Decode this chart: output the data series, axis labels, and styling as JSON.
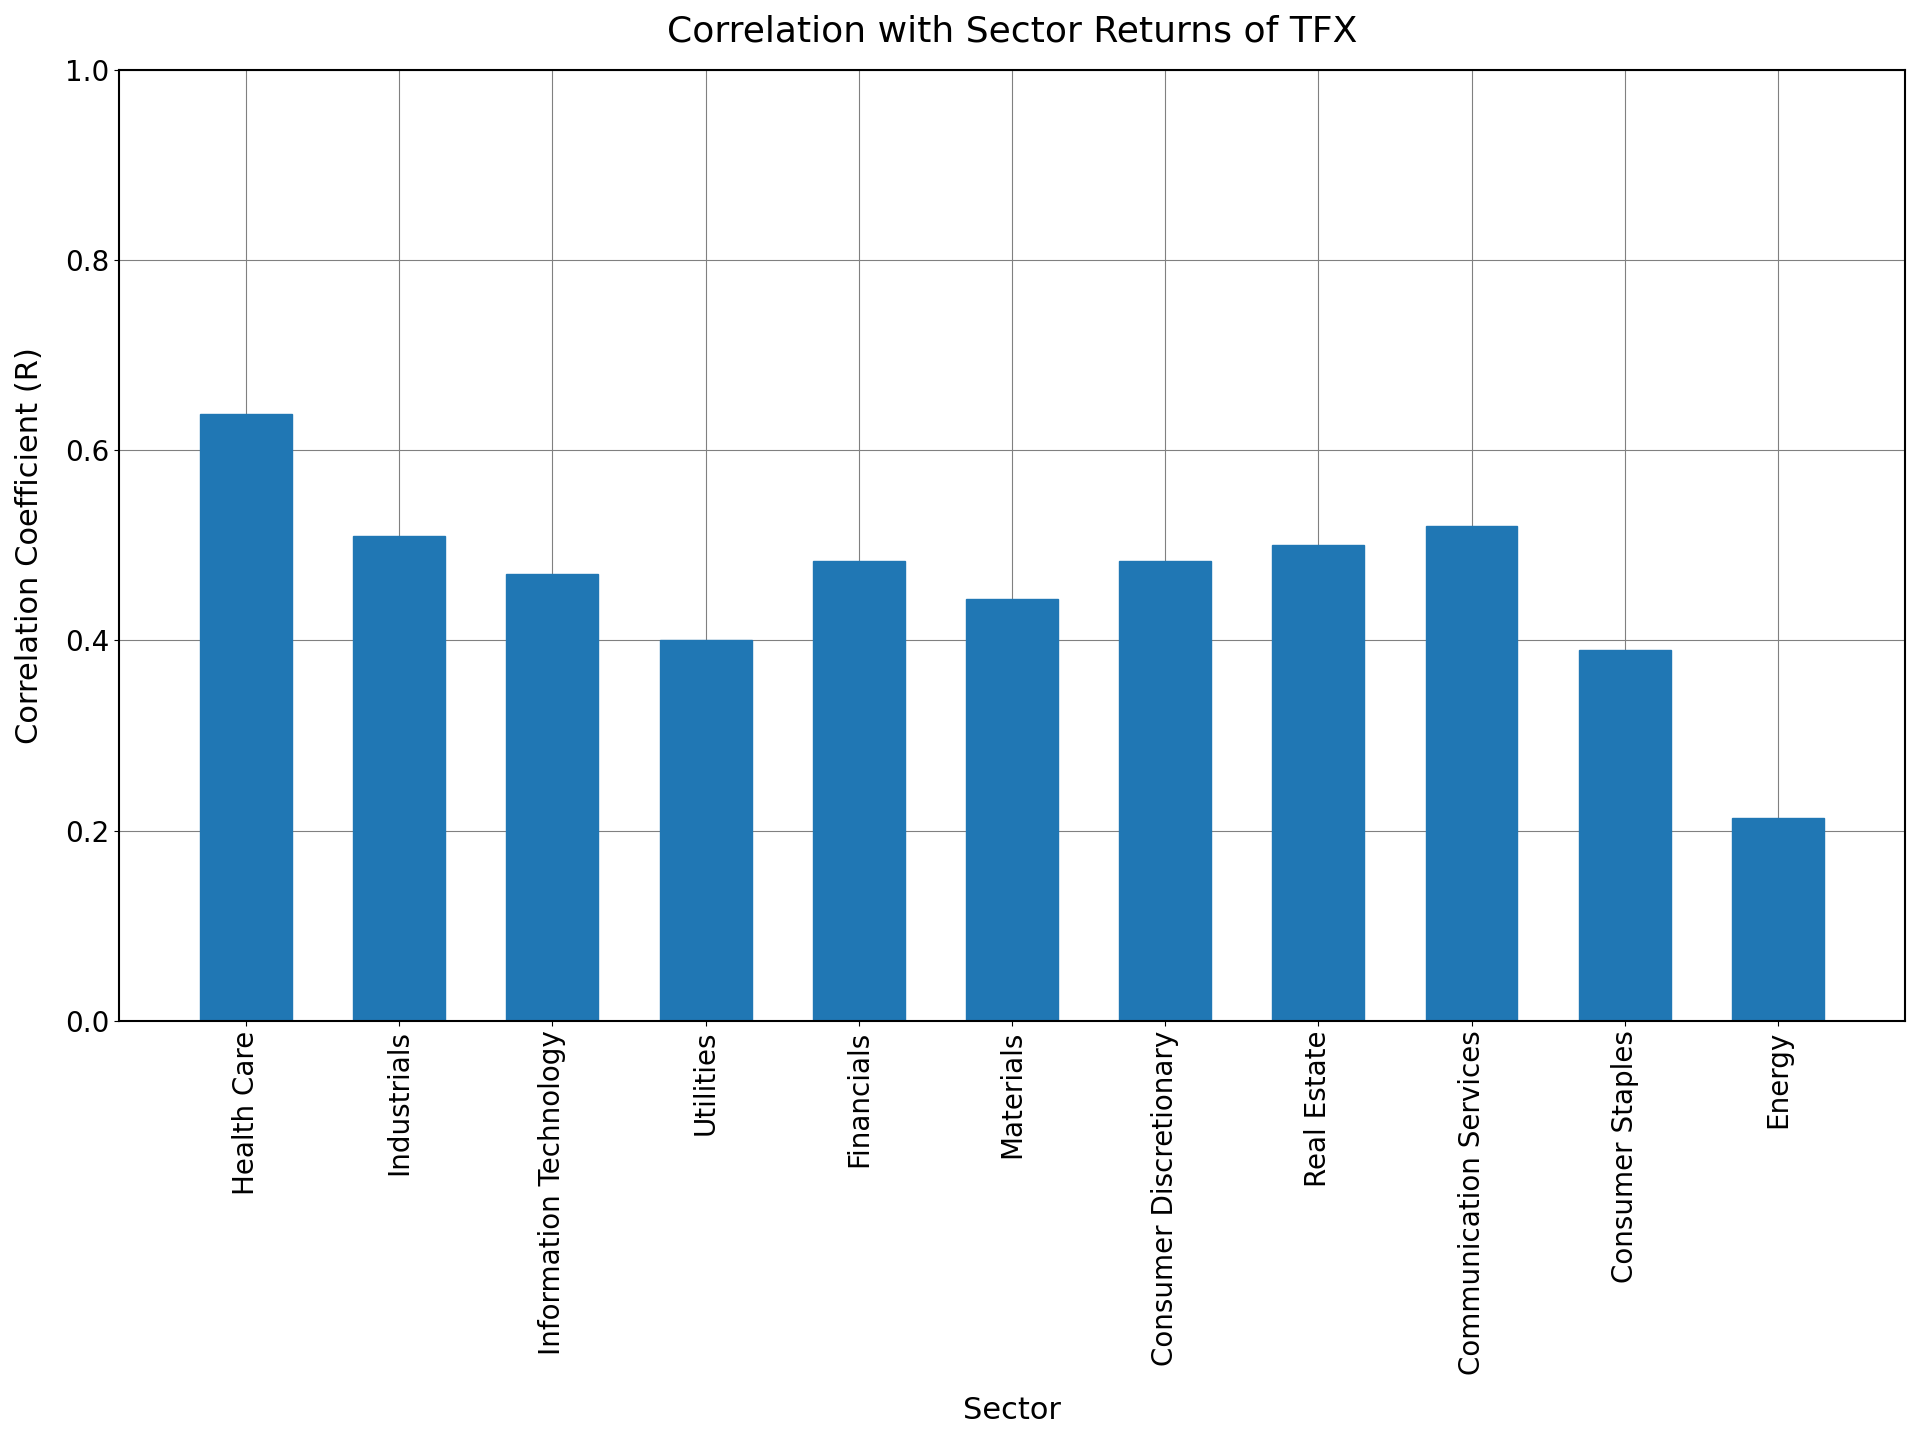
{
  "title": "Correlation with Sector Returns of TFX",
  "xlabel": "Sector",
  "ylabel": "Correlation Coefficient (R)",
  "categories": [
    "Health Care",
    "Industrials",
    "Information Technology",
    "Utilities",
    "Financials",
    "Materials",
    "Consumer Discretionary",
    "Real Estate",
    "Communication Services",
    "Consumer Staples",
    "Energy"
  ],
  "values": [
    0.638,
    0.51,
    0.47,
    0.4,
    0.483,
    0.443,
    0.483,
    0.5,
    0.52,
    0.39,
    0.213
  ],
  "bar_color": "#2077b4",
  "ylim": [
    0.0,
    1.0
  ],
  "yticks": [
    0.0,
    0.2,
    0.4,
    0.6,
    0.8,
    1.0
  ],
  "title_fontsize": 26,
  "label_fontsize": 22,
  "tick_fontsize": 20,
  "bar_width": 0.6,
  "xtick_rotation": 90,
  "xtick_ha": "center"
}
